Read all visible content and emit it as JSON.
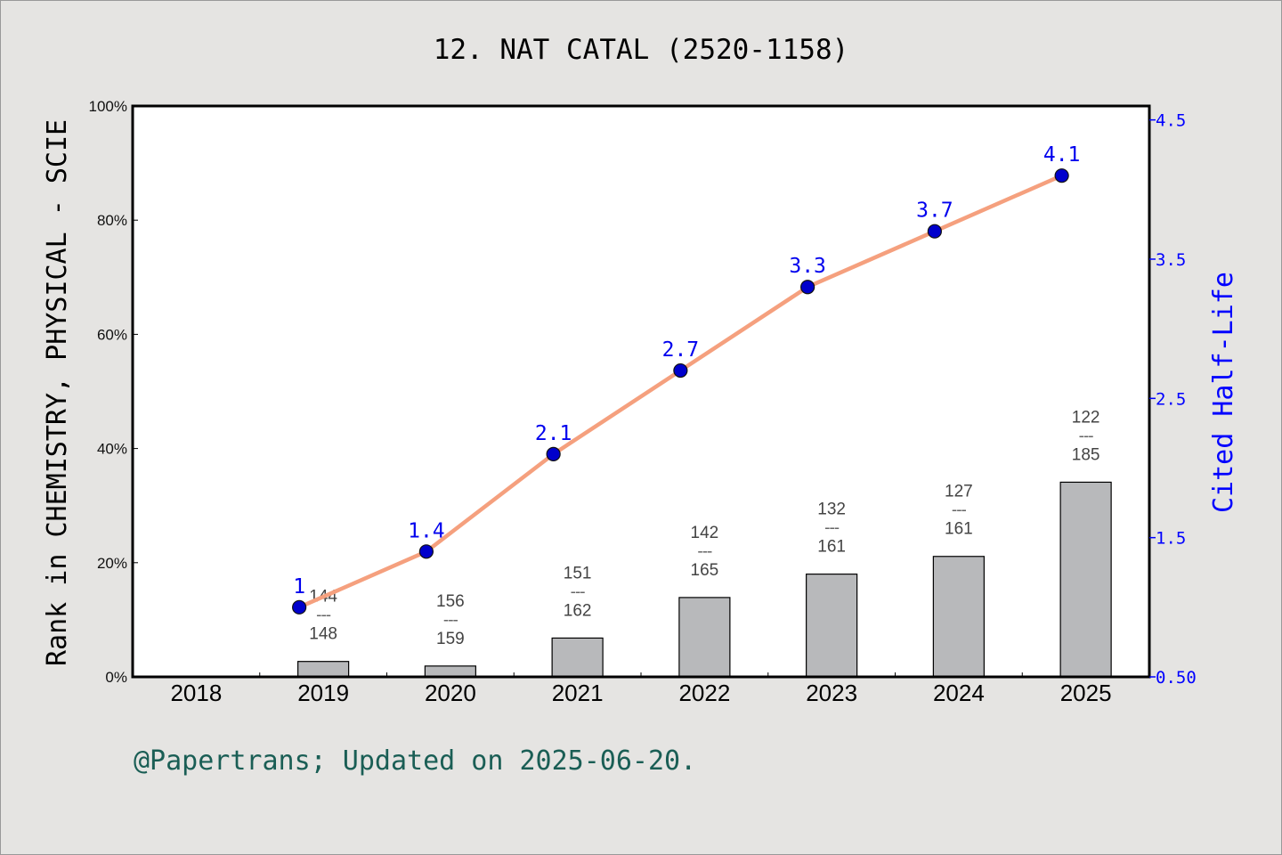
{
  "chart_data": {
    "type": "bar+line",
    "title": "12. NAT CATAL (2520-1158)",
    "categories": [
      "2018",
      "2019",
      "2020",
      "2021",
      "2022",
      "2023",
      "2024",
      "2025"
    ],
    "ylabel": "Rank in CHEMISTRY, PHYSICAL - SCIE",
    "ylabel_right": "Cited Half-Life",
    "ylim": [
      0,
      100
    ],
    "ylim_right": [
      0.5,
      4.6
    ],
    "yticks": [
      "0%",
      "20%",
      "40%",
      "60%",
      "80%",
      "100%"
    ],
    "yticks_right": [
      "0.50",
      "1.5",
      "2.5",
      "3.5",
      "4.5"
    ],
    "bars": {
      "values_percent": [
        null,
        2.7,
        1.9,
        6.8,
        13.9,
        18.0,
        21.1,
        34.1
      ],
      "rank": [
        null,
        "144",
        "156",
        "151",
        "142",
        "132",
        "127",
        "122"
      ],
      "total": [
        null,
        "148",
        "159",
        "162",
        "165",
        "161",
        "161",
        "185"
      ],
      "color": "#b8b9bb"
    },
    "line": {
      "values": [
        null,
        1,
        1.4,
        2.1,
        2.7,
        3.3,
        3.7,
        4.1
      ],
      "labels": [
        null,
        "1",
        "1.4",
        "2.1",
        "2.7",
        "3.3",
        "3.7",
        "4.1"
      ],
      "line_color": "#f5a07e",
      "marker_color": "#0000cc"
    },
    "grid": false
  },
  "footer": "@Papertrans; Updated on 2025-06-20."
}
